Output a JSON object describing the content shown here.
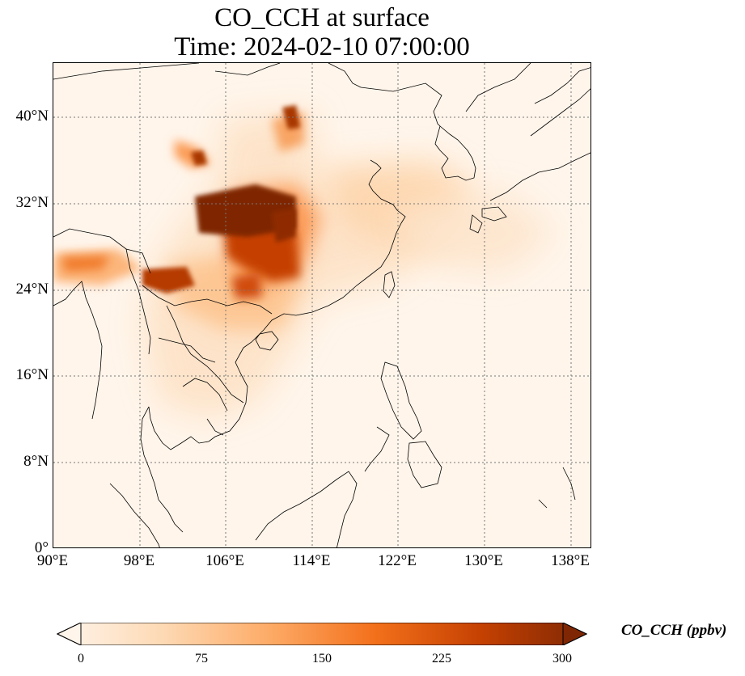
{
  "title_line1": "CO_CCH at surface",
  "title_line2": "Time: 2024-02-10 07:00:00",
  "map": {
    "lat_labels": [
      "0°",
      "8°N",
      "16°N",
      "24°N",
      "32°N",
      "40°N"
    ],
    "lon_labels": [
      "90°E",
      "98°E",
      "106°E",
      "114°E",
      "122°E",
      "130°E",
      "138°E"
    ],
    "lat_values": [
      0,
      8,
      16,
      24,
      32,
      40
    ],
    "lon_values": [
      90,
      98,
      106,
      114,
      122,
      130,
      138
    ],
    "lon_range": [
      90,
      140
    ],
    "lat_range": [
      0,
      45
    ],
    "gridlines": true
  },
  "colorbar": {
    "label": "CO_CCH (ppbv)",
    "ticks": [
      "0",
      "75",
      "150",
      "225",
      "300"
    ],
    "tick_values": [
      0,
      75,
      150,
      225,
      300
    ],
    "range": [
      0,
      300
    ],
    "extend": "both",
    "colormap": [
      "#fff5eb",
      "#fdd9b4",
      "#fdab67",
      "#f3701b",
      "#c54102",
      "#7f2704"
    ]
  }
}
